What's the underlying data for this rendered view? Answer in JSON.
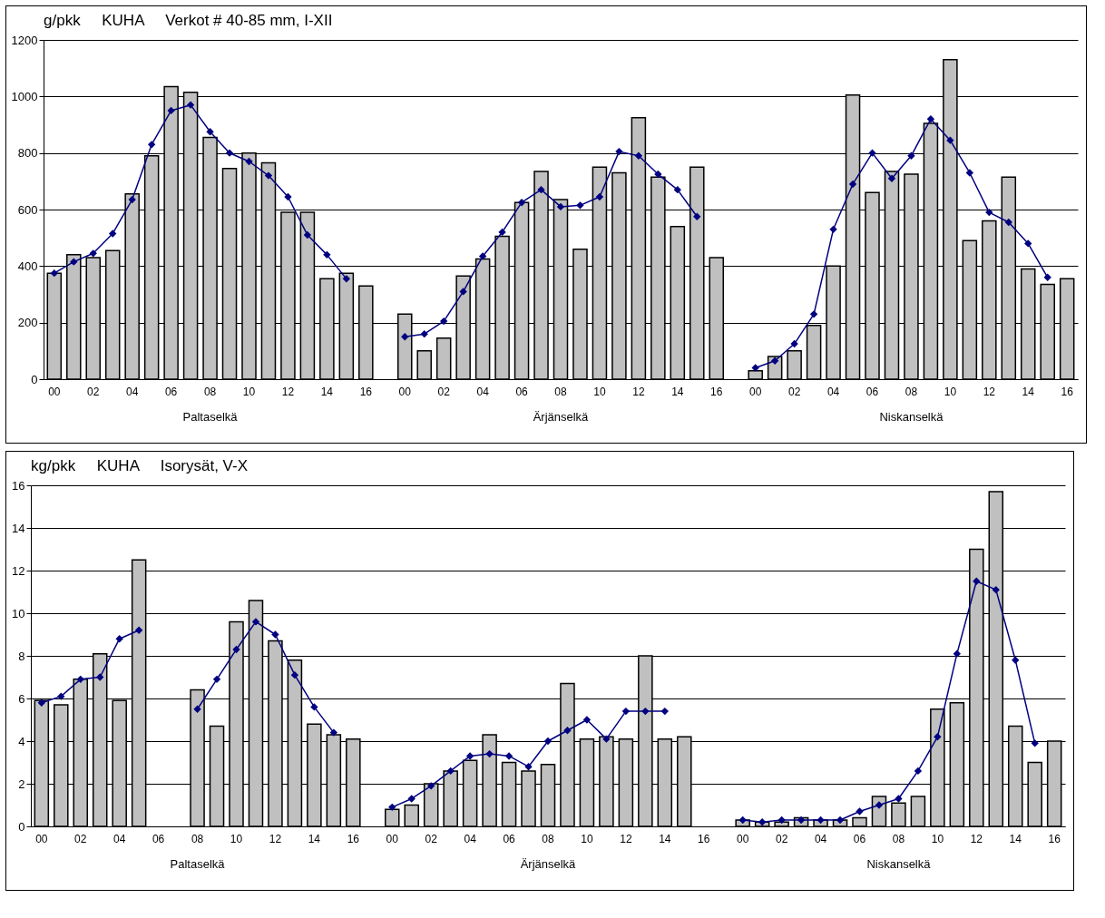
{
  "chart_data": [
    {
      "type": "bar",
      "title": "g/pkk     KUHA     Verkot # 40-85 mm, I-XII",
      "categories": [
        "00",
        null,
        "02",
        null,
        "04",
        null,
        "06",
        null,
        "08",
        null,
        "10",
        null,
        "12",
        null,
        "14",
        null,
        "16",
        null,
        "00",
        null,
        "02",
        null,
        "04",
        null,
        "06",
        null,
        "08",
        null,
        "10",
        null,
        "12",
        null,
        "14",
        null,
        "16",
        null,
        "00",
        null,
        "02",
        null,
        "04",
        null,
        "06",
        null,
        "08",
        null,
        "10",
        null,
        "12",
        null,
        "14",
        null,
        "16"
      ],
      "series": [
        {
          "color": "#c0c0c0",
          "values": [
            375,
            440,
            430,
            455,
            655,
            790,
            1035,
            1015,
            855,
            745,
            800,
            765,
            590,
            590,
            355,
            375,
            330,
            null,
            230,
            100,
            145,
            365,
            425,
            505,
            625,
            735,
            635,
            460,
            750,
            730,
            925,
            715,
            540,
            750,
            430,
            null,
            30,
            80,
            100,
            190,
            400,
            1005,
            660,
            735,
            725,
            905,
            1130,
            490,
            560,
            715,
            390,
            335,
            355
          ]
        },
        {
          "type": "line",
          "color": "#000080",
          "marker": "diamond",
          "values": [
            375,
            415,
            445,
            515,
            635,
            830,
            950,
            970,
            875,
            800,
            770,
            720,
            645,
            510,
            440,
            355,
            null,
            null,
            150,
            160,
            205,
            310,
            435,
            520,
            625,
            670,
            610,
            615,
            645,
            805,
            790,
            725,
            670,
            575,
            null,
            null,
            40,
            65,
            125,
            230,
            530,
            690,
            800,
            710,
            790,
            920,
            845,
            730,
            590,
            555,
            480,
            360,
            null
          ]
        }
      ],
      "ylim": [
        0,
        1200
      ],
      "yticks": [
        0,
        200,
        400,
        600,
        800,
        1000,
        1200
      ],
      "grid": "y",
      "annotations": [
        "Paltaselkä",
        "Ärjänselkä",
        "Niskanselkä"
      ]
    },
    {
      "type": "bar",
      "title": "kg/pkk     KUHA     Isorysät, V-X",
      "categories": [
        "00",
        null,
        "02",
        null,
        "04",
        null,
        "06",
        null,
        "08",
        null,
        "10",
        null,
        "12",
        null,
        "14",
        null,
        "16",
        null,
        "00",
        null,
        "02",
        null,
        "04",
        null,
        "06",
        null,
        "08",
        null,
        "10",
        null,
        "12",
        null,
        "14",
        null,
        "16",
        null,
        "00",
        null,
        "02",
        null,
        "04",
        null,
        "06",
        null,
        "08",
        null,
        "10",
        null,
        "12",
        null,
        "14",
        null,
        "16"
      ],
      "series": [
        {
          "color": "#c0c0c0",
          "values": [
            5.9,
            5.7,
            6.9,
            8.1,
            5.9,
            12.5,
            null,
            null,
            6.4,
            4.7,
            9.6,
            10.6,
            8.7,
            7.8,
            4.8,
            4.3,
            4.1,
            null,
            0.8,
            1.0,
            2.0,
            2.6,
            3.1,
            4.3,
            3.0,
            2.6,
            2.9,
            6.7,
            4.1,
            4.2,
            4.1,
            8.0,
            4.1,
            4.2,
            null,
            null,
            0.3,
            0.2,
            0.2,
            0.4,
            0.3,
            0.3,
            0.4,
            1.4,
            1.1,
            1.4,
            5.5,
            5.8,
            13.0,
            15.7,
            4.7,
            3.0,
            4.0
          ]
        },
        {
          "type": "line",
          "color": "#000080",
          "marker": "diamond",
          "values": [
            5.8,
            6.1,
            6.9,
            7.0,
            8.8,
            9.2,
            null,
            null,
            5.5,
            6.9,
            8.3,
            9.6,
            9.0,
            7.1,
            5.6,
            4.4,
            null,
            null,
            0.9,
            1.3,
            1.9,
            2.6,
            3.3,
            3.4,
            3.3,
            2.8,
            4.0,
            4.5,
            5.0,
            4.1,
            5.4,
            5.4,
            5.4,
            null,
            null,
            null,
            0.3,
            0.2,
            0.3,
            0.3,
            0.3,
            0.3,
            0.7,
            1.0,
            1.3,
            2.6,
            4.2,
            8.1,
            11.5,
            11.1,
            7.8,
            3.9,
            null
          ]
        }
      ],
      "ylim": [
        0,
        16
      ],
      "yticks": [
        0,
        2,
        4,
        6,
        8,
        10,
        12,
        14,
        16
      ],
      "grid": "y",
      "annotations": [
        "Paltaselkä",
        "Ärjänselkä",
        "Niskanselkä"
      ]
    }
  ]
}
